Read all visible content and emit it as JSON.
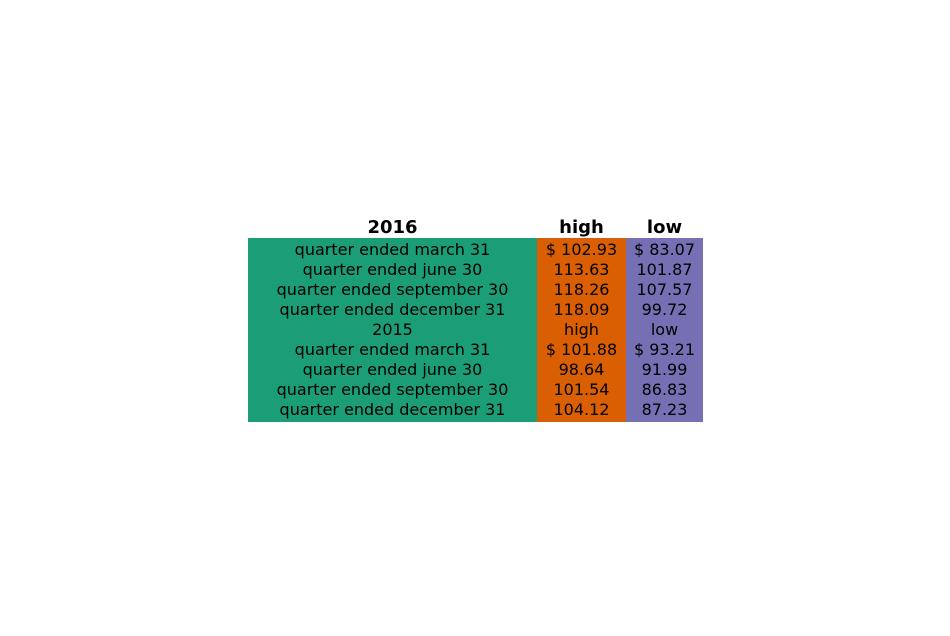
{
  "chart_data": {
    "type": "table",
    "columns": [
      "2016",
      "high",
      "low"
    ],
    "column_colors": [
      "#1b9e77",
      "#d95f02",
      "#7570b3"
    ],
    "rows": [
      [
        "quarter ended march 31",
        "$ 102.93",
        "$ 83.07"
      ],
      [
        "quarter ended june 30",
        "113.63",
        "101.87"
      ],
      [
        "quarter ended september 30",
        "118.26",
        "107.57"
      ],
      [
        "quarter ended december 31",
        "118.09",
        "99.72"
      ],
      [
        "2015",
        "high",
        "low"
      ],
      [
        "quarter ended march 31",
        "$ 101.88",
        "$ 93.21"
      ],
      [
        "quarter ended june 30",
        "98.64",
        "91.99"
      ],
      [
        "quarter ended september 30",
        "101.54",
        "86.83"
      ],
      [
        "quarter ended december 31",
        "104.12",
        "87.23"
      ]
    ]
  }
}
